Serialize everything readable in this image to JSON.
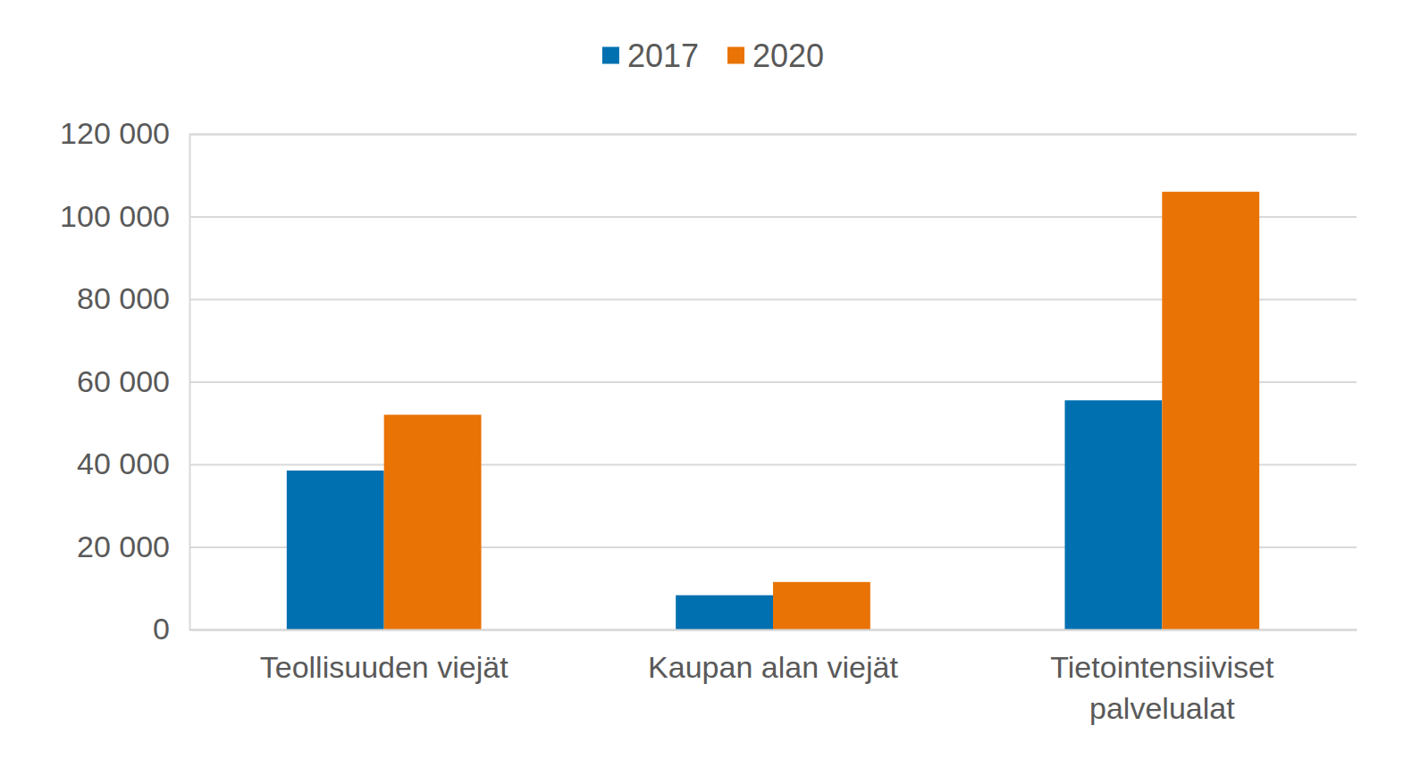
{
  "chart_data": {
    "type": "bar",
    "categories": [
      "Teollisuuden viejät",
      "Kaupan alan viejät",
      "Tietointensiiviset palvelualat"
    ],
    "series": [
      {
        "name": "2017",
        "color": "#0070b0",
        "values": [
          38500,
          8300,
          55500
        ]
      },
      {
        "name": "2020",
        "color": "#e97305",
        "values": [
          52000,
          11500,
          106000
        ]
      }
    ],
    "ylim": [
      0,
      120000
    ],
    "yticks": [
      0,
      {
        "value": 20000,
        "label": "20 000"
      },
      {
        "value": 40000,
        "label": "40 000"
      },
      {
        "value": 60000,
        "label": "60 000"
      },
      {
        "value": 80000,
        "label": "80 000"
      },
      {
        "value": 100000,
        "label": "100 000"
      },
      {
        "value": 120000,
        "label": "120 000"
      }
    ],
    "grid": true,
    "legend": "top"
  }
}
